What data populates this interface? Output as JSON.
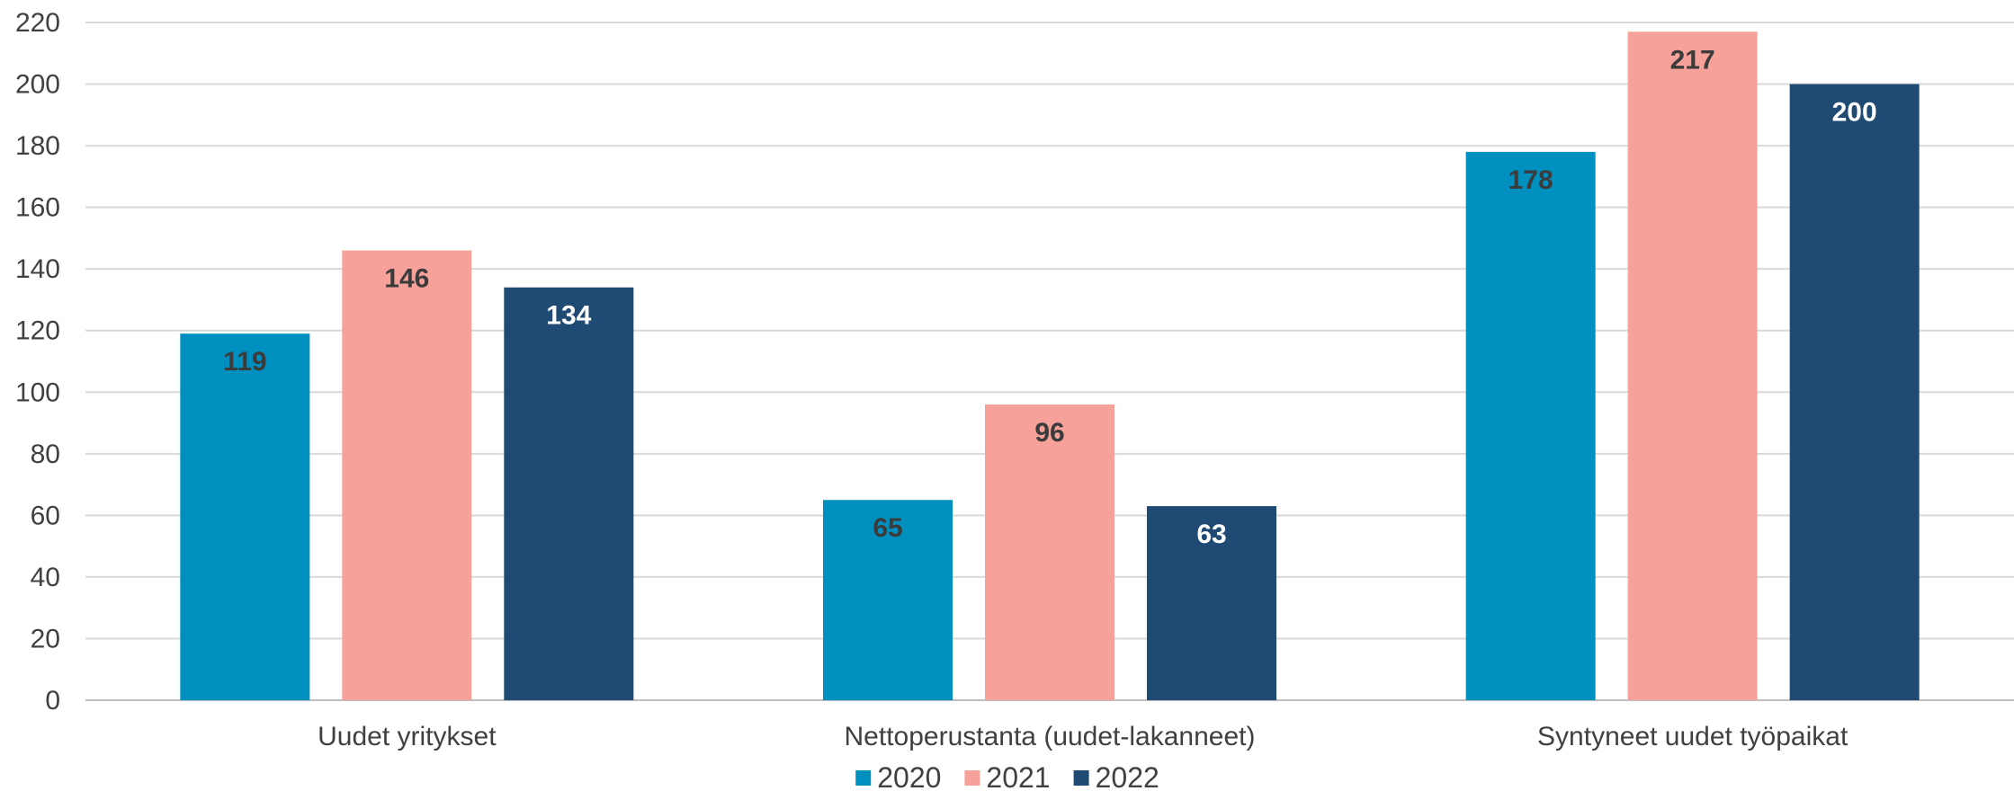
{
  "chart_data": {
    "type": "bar",
    "title": "",
    "xlabel": "",
    "ylabel": "",
    "ylim": [
      0,
      220
    ],
    "ytick_step": 20,
    "grid": true,
    "legend_position": "bottom",
    "categories": [
      "Uudet yritykset",
      "Nettoperustanta (uudet-lakanneet)",
      "Syntyneet uudet työpaikat"
    ],
    "series": [
      {
        "name": "2020",
        "color": "#0090BF",
        "label_color": "#3B3B3B",
        "values": [
          119,
          65,
          178
        ]
      },
      {
        "name": "2021",
        "color": "#F6A19A",
        "label_color": "#3B3B3B",
        "values": [
          146,
          96,
          217
        ]
      },
      {
        "name": "2022",
        "color": "#1F4A73",
        "label_color": "#FFFFFF",
        "values": [
          134,
          63,
          200
        ]
      }
    ]
  }
}
